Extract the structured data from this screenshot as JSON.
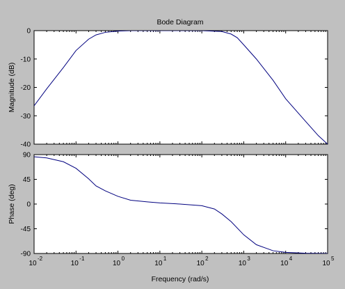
{
  "chart_data": [
    {
      "type": "line",
      "title": "Bode Diagram",
      "xlabel": "",
      "ylabel": "Magnitude (dB)",
      "xscale": "log",
      "xlim": [
        0.01,
        100000
      ],
      "ylim": [
        -40,
        0
      ],
      "y_ticks": [
        "0",
        "-10",
        "-20",
        "-30",
        "-40"
      ],
      "y_tick_values": [
        0,
        -10,
        -20,
        -30,
        -40
      ],
      "grid": false,
      "line_color": "#00007f",
      "series": [
        {
          "x": [
            0.01,
            0.02,
            0.05,
            0.1,
            0.2,
            0.3,
            0.5,
            1,
            2,
            10,
            100,
            300,
            500,
            700,
            1000,
            2000,
            5000,
            10000,
            30000,
            60000,
            100000
          ],
          "values": [
            -26.5,
            -20.5,
            -13,
            -7,
            -3,
            -1.5,
            -0.6,
            -0.15,
            0,
            0,
            0,
            -0.3,
            -1.2,
            -2.5,
            -5,
            -10,
            -17.5,
            -24,
            -32,
            -37,
            -40
          ]
        }
      ]
    },
    {
      "type": "line",
      "title": "",
      "xlabel": "Frequency  (rad/s)",
      "ylabel": "Phase (deg)",
      "xscale": "log",
      "xlim": [
        0.01,
        100000
      ],
      "ylim": [
        -90,
        90
      ],
      "x_ticks": [
        "10",
        "10",
        "10",
        "10",
        "10",
        "10",
        "10",
        "10"
      ],
      "x_tick_exponents": [
        "-2",
        "-1",
        "0",
        "1",
        "2",
        "3",
        "4",
        "5"
      ],
      "x_tick_values": [
        0.01,
        0.1,
        1,
        10,
        100,
        1000,
        10000,
        100000
      ],
      "y_ticks": [
        "90",
        "45",
        "0",
        "-45",
        "-90"
      ],
      "y_tick_values": [
        90,
        45,
        0,
        -45,
        -90
      ],
      "grid": false,
      "line_color": "#00007f",
      "series": [
        {
          "x": [
            0.01,
            0.02,
            0.05,
            0.1,
            0.2,
            0.3,
            0.5,
            1,
            2,
            5,
            10,
            30,
            100,
            200,
            300,
            500,
            1000,
            2000,
            5000,
            10000,
            30000,
            100000
          ],
          "values": [
            86,
            84,
            77,
            65,
            46,
            33,
            24,
            14,
            7,
            4,
            2,
            0,
            -3,
            -9,
            -18,
            -32,
            -56,
            -74,
            -85,
            -88,
            -89.5,
            -90
          ]
        }
      ]
    }
  ]
}
